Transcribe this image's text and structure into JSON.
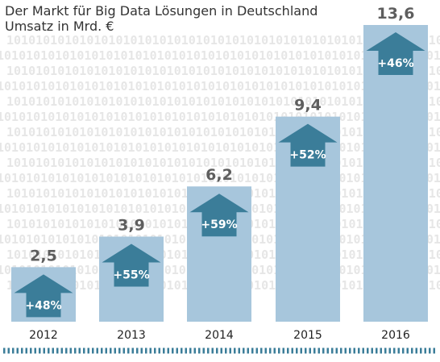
{
  "title": "Der Markt für Big Data Lösungen in Deutschland",
  "subtitle": "Umsatz in Mrd. €",
  "background_pattern": "1010101010",
  "colors": {
    "bar": "#a7c6dc",
    "arrow": "#3b7d99",
    "value_label": "#5e5e5e",
    "pattern": "#e6e6e6",
    "bottom_rule": "#3b7d99"
  },
  "chart_data": {
    "type": "bar",
    "title": "Der Markt für Big Data Lösungen in Deutschland",
    "subtitle": "Umsatz in Mrd. €",
    "categories": [
      "2012",
      "2013",
      "2014",
      "2015",
      "2016"
    ],
    "values": [
      2.5,
      3.9,
      6.2,
      9.4,
      13.6
    ],
    "value_labels": [
      "2,5",
      "3,9",
      "6,2",
      "9,4",
      "13,6"
    ],
    "growth_labels": [
      "+48%",
      "+55%",
      "+59%",
      "+52%",
      "+46%"
    ],
    "ylim": [
      0,
      13.6
    ],
    "grid": false,
    "legend": "none"
  }
}
